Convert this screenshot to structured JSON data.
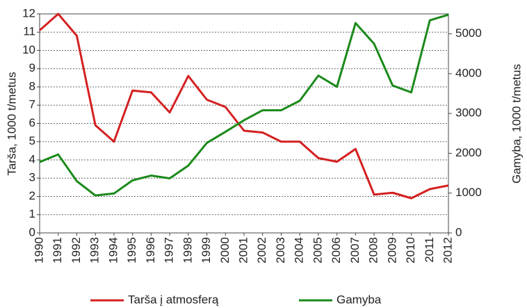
{
  "chart_data": {
    "type": "line",
    "categories": [
      "1990",
      "1991",
      "1992",
      "1993",
      "1994",
      "1995",
      "1996",
      "1997",
      "1998",
      "1999",
      "2000",
      "2001",
      "2002",
      "2003",
      "2004",
      "2005",
      "2006",
      "2007",
      "2008",
      "2009",
      "2010",
      "2011",
      "2012"
    ],
    "ylabel": "Tarša, 1000 t/metus",
    "y2label": "Gamyba, 1000 t/metus",
    "ylim": [
      0,
      12
    ],
    "yticks": [
      0,
      1,
      2,
      3,
      4,
      5,
      6,
      7,
      8,
      9,
      10,
      11,
      12
    ],
    "y2lim": [
      0,
      5500
    ],
    "y2ticks": [
      0,
      1000,
      2000,
      3000,
      4000,
      5000
    ],
    "grid": true,
    "legend": "bottom",
    "series": [
      {
        "name": "Tarša į atmosferą",
        "color": "#d42020",
        "axis": "y",
        "values": [
          11.1,
          12.0,
          10.8,
          5.9,
          5.0,
          7.8,
          7.7,
          6.6,
          8.6,
          7.3,
          6.9,
          5.6,
          5.5,
          5.0,
          5.0,
          4.1,
          3.9,
          4.6,
          2.1,
          2.2,
          1.9,
          2.4,
          2.6
        ]
      },
      {
        "name": "Gamyba",
        "color": "#1a8a1a",
        "axis": "y2",
        "values": [
          1780,
          1970,
          1300,
          940,
          990,
          1320,
          1440,
          1370,
          1690,
          2260,
          2540,
          2830,
          3080,
          3080,
          3320,
          3950,
          3670,
          5270,
          4750,
          3700,
          3530,
          5340,
          5480
        ]
      }
    ]
  }
}
